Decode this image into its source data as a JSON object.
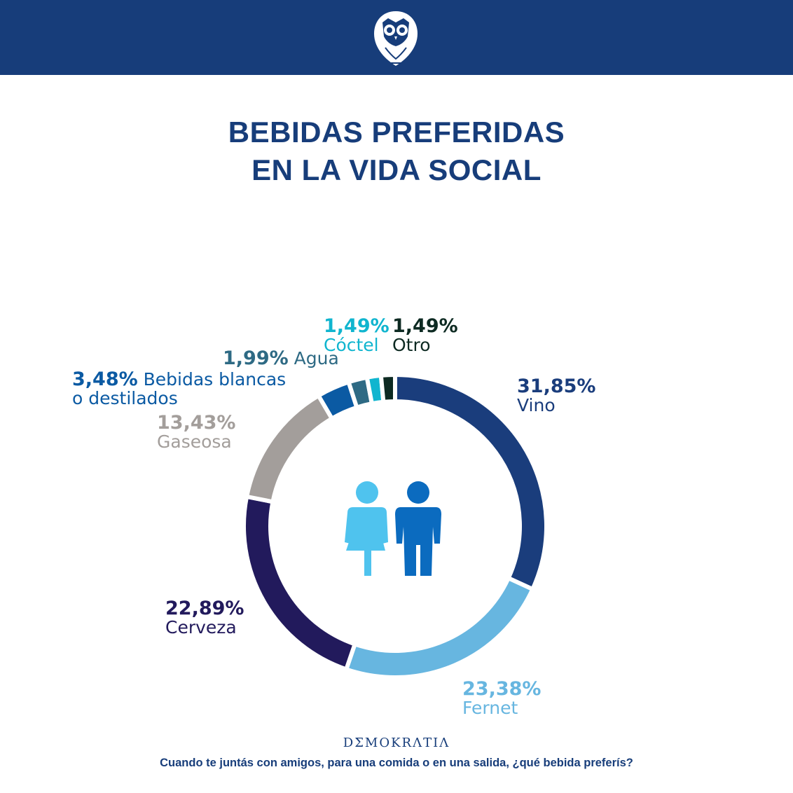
{
  "header": {
    "logo": "owl-logo"
  },
  "chart_data": {
    "type": "pie",
    "donut": true,
    "title": "BEBIDAS PREFERIDAS EN LA VIDA SOCIAL",
    "title_lines": [
      "BEBIDAS PREFERIDAS",
      "EN LA VIDA SOCIAL"
    ],
    "slices": [
      {
        "label": "Vino",
        "value": 31.85,
        "display": "31,85%",
        "color": "#1a3d7c"
      },
      {
        "label": "Fernet",
        "value": 23.38,
        "display": "23,38%",
        "color": "#67b6e0"
      },
      {
        "label": "Cerveza",
        "value": 22.89,
        "display": "22,89%",
        "color": "#221a5c"
      },
      {
        "label": "Gaseosa",
        "value": 13.43,
        "display": "13,43%",
        "color": "#a39e9b"
      },
      {
        "label": "Bebidas blancas o destilados",
        "label_lines": [
          "Bebidas blancas",
          "o destilados"
        ],
        "value": 3.48,
        "display": "3,48%",
        "color": "#0b5aa3"
      },
      {
        "label": "Agua",
        "value": 1.99,
        "display": "1,99%",
        "color": "#2e6a84"
      },
      {
        "label": "Cóctel",
        "value": 1.49,
        "display": "1,49%",
        "color": "#10b5cf"
      },
      {
        "label": "Otro",
        "value": 1.49,
        "display": "1,49%",
        "color": "#0d2a22"
      }
    ],
    "start": "top",
    "direction": "clockwise",
    "center_icon": "woman-and-man-icon"
  },
  "footer": {
    "brand": "DΣMOKRΛTIΛ",
    "question": "Cuando te juntás con amigos, para una comida o en una salida, ¿qué bebida preferís?"
  }
}
